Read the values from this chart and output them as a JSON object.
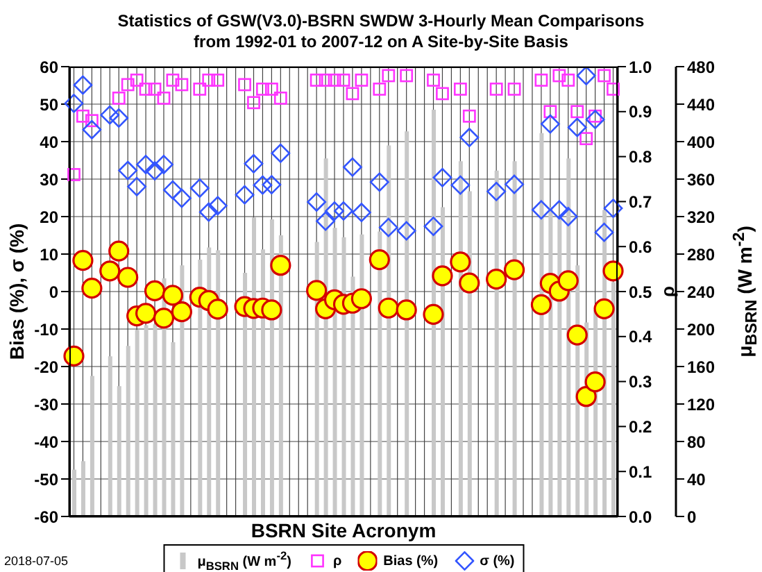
{
  "chart_data": {
    "type": "scatter",
    "title": "Statistics of GSW(V3.0)-BSRN SWDW 3-Hourly Mean Comparisons",
    "subtitle": "from 1992-01 to 2007-12 on A Site-by-Site Basis",
    "xlabel": "BSRN Site Acronym",
    "ylabel": "Bias (%), σ (%)",
    "y2label": "ρ",
    "y3label": "μ$_{BSRN}$ (W m$^{-2}$)",
    "annotations": [
      "2018-07-05"
    ],
    "categories": [
      null,
      null,
      null,
      null,
      null,
      null,
      null,
      null,
      null,
      null,
      null,
      null,
      null,
      null,
      null,
      null,
      null,
      null,
      null,
      null,
      null,
      null,
      null,
      null,
      null,
      null,
      null,
      null,
      null,
      null,
      null,
      null,
      null,
      null,
      null,
      null,
      null,
      null,
      null,
      null,
      null,
      null,
      null,
      null,
      null,
      null,
      null,
      null,
      null,
      null,
      null,
      null,
      null,
      null,
      null,
      null,
      null,
      null,
      null,
      null,
      null
    ],
    "ylim": [
      -60,
      60
    ],
    "yticks": [
      -60,
      -50,
      -40,
      -30,
      -20,
      -10,
      0,
      10,
      20,
      30,
      40,
      50,
      60
    ],
    "y2lim": [
      0,
      1
    ],
    "y2ticks": [
      {
        "value": 0,
        "label": "0.0"
      },
      0.1,
      0.2,
      0.3,
      0.4,
      0.5,
      0.6,
      0.7,
      0.8,
      0.9,
      {
        "value": 1,
        "label": "1.0"
      }
    ],
    "y3lim": [
      0,
      480
    ],
    "y3ticks": [
      0,
      40,
      80,
      120,
      160,
      200,
      240,
      280,
      320,
      360,
      400,
      440,
      480
    ],
    "grid": true,
    "legend": "bottom",
    "series": [
      {
        "name": "μ$_{BSRN}$ (W m$^{-2}$)",
        "type": "bar",
        "axis": "y3",
        "color": "#c8c8c8",
        "values": [
          50,
          59,
          150,
          null,
          171,
          139,
          182,
          199,
          204,
          205,
          254,
          186,
          268,
          null,
          274,
          287,
          284,
          null,
          null,
          260,
          319,
          285,
          317,
          300,
          null,
          null,
          null,
          293,
          382,
          308,
          298,
          256,
          301,
          null,
          304,
          396,
          null,
          411,
          null,
          null,
          434,
          330,
          null,
          379,
          347,
          null,
          null,
          369,
          null,
          379,
          null,
          null,
          409,
          330,
          320,
          382,
          268,
          207,
          220,
          327,
          250
        ]
      },
      {
        "name": "ρ",
        "axis": "y2",
        "marker": "square",
        "color": "#ff33ff",
        "values": [
          0.76,
          0.89,
          0.88,
          null,
          null,
          0.93,
          0.96,
          0.97,
          0.95,
          0.95,
          0.93,
          0.97,
          0.96,
          null,
          0.95,
          0.97,
          0.97,
          null,
          null,
          0.96,
          0.92,
          0.95,
          0.95,
          0.93,
          null,
          null,
          null,
          0.97,
          0.97,
          0.97,
          0.97,
          0.94,
          0.97,
          null,
          0.95,
          0.98,
          null,
          0.98,
          null,
          null,
          0.97,
          0.94,
          null,
          0.95,
          0.89,
          null,
          null,
          0.95,
          null,
          0.95,
          null,
          null,
          0.97,
          0.9,
          0.98,
          0.97,
          0.9,
          0.84,
          0.89,
          0.98,
          0.95
        ]
      },
      {
        "name": "Bias (%)",
        "axis": "y",
        "marker": "circle",
        "color": "#ffff00",
        "values": [
          -17.2,
          8.3,
          0.9,
          null,
          5.5,
          10.8,
          3.8,
          -6.5,
          -5.8,
          0.2,
          -7.1,
          -1.0,
          -5.4,
          null,
          -1.5,
          -2.4,
          -4.7,
          null,
          null,
          -4.0,
          -4.5,
          -4.4,
          -4.9,
          7.0,
          null,
          null,
          null,
          0.3,
          -4.6,
          -2.2,
          -3.4,
          -3.1,
          -1.9,
          null,
          8.5,
          -4.4,
          null,
          -4.9,
          null,
          null,
          -6.1,
          4.2,
          null,
          7.9,
          2.3,
          null,
          null,
          3.3,
          null,
          5.8,
          null,
          null,
          -3.5,
          2.2,
          0.1,
          2.9,
          -11.6,
          -28.0,
          -24.1,
          -4.6,
          5.5
        ]
      },
      {
        "name": "σ (%)",
        "axis": "y",
        "marker": "diamond",
        "color": "#3355ff",
        "values": [
          50.2,
          55.1,
          43.2,
          null,
          47.1,
          46.3,
          32.3,
          28.0,
          33.9,
          32.2,
          33.9,
          27.1,
          24.9,
          null,
          27.6,
          21.2,
          22.9,
          null,
          null,
          25.8,
          34.1,
          28.4,
          28.5,
          36.9,
          null,
          null,
          null,
          23.9,
          18.8,
          21.5,
          21.5,
          33.2,
          21.1,
          null,
          29.2,
          17.1,
          null,
          16.2,
          null,
          null,
          17.4,
          30.4,
          null,
          28.4,
          41.1,
          null,
          null,
          26.7,
          null,
          28.6,
          null,
          null,
          21.8,
          44.7,
          21.8,
          20.0,
          43.8,
          57.6,
          45.9,
          15.8,
          22.2
        ]
      }
    ]
  }
}
